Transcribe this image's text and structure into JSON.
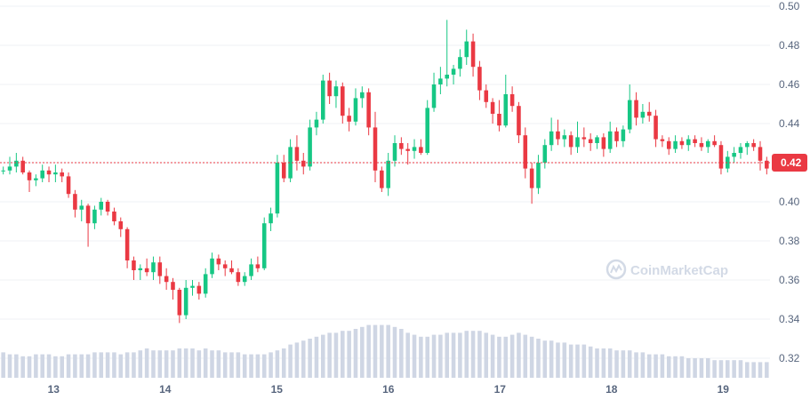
{
  "chart_data": {
    "type": "candlestick",
    "title": "",
    "xlabel": "",
    "ylabel": "",
    "ylim": [
      0.31,
      0.5
    ],
    "y_ticks": [
      "0.32",
      "0.34",
      "0.36",
      "0.38",
      "0.40",
      "0.42",
      "0.44",
      "0.46",
      "0.48",
      "0.50"
    ],
    "x_ticks": [
      "13",
      "14",
      "15",
      "16",
      "17",
      "18",
      "19"
    ],
    "x_tick_days": [
      13,
      14,
      15,
      16,
      17,
      18,
      19
    ],
    "x_range_days": [
      12.52,
      19.42
    ],
    "current_price": 0.42,
    "current_price_label": "0.42",
    "grid": true,
    "watermark": "CoinMarketCap",
    "colors": {
      "up": "#16c784",
      "down": "#ea3943",
      "volume": "#cfd6e4",
      "grid": "#eff2f5",
      "axis_text": "#58667e",
      "price_line": "#ea3943"
    },
    "candles": [
      [
        0.416,
        0.418,
        0.414,
        0.416
      ],
      [
        0.416,
        0.423,
        0.414,
        0.418
      ],
      [
        0.418,
        0.425,
        0.415,
        0.421
      ],
      [
        0.421,
        0.423,
        0.414,
        0.415
      ],
      [
        0.415,
        0.416,
        0.405,
        0.411
      ],
      [
        0.411,
        0.414,
        0.408,
        0.412
      ],
      [
        0.412,
        0.419,
        0.41,
        0.416
      ],
      [
        0.416,
        0.418,
        0.41,
        0.414
      ],
      [
        0.414,
        0.419,
        0.41,
        0.415
      ],
      [
        0.415,
        0.417,
        0.41,
        0.413
      ],
      [
        0.413,
        0.415,
        0.402,
        0.404
      ],
      [
        0.404,
        0.406,
        0.392,
        0.396
      ],
      [
        0.396,
        0.401,
        0.39,
        0.398
      ],
      [
        0.398,
        0.399,
        0.377,
        0.389
      ],
      [
        0.389,
        0.398,
        0.386,
        0.396
      ],
      [
        0.396,
        0.402,
        0.393,
        0.4
      ],
      [
        0.4,
        0.401,
        0.393,
        0.395
      ],
      [
        0.395,
        0.397,
        0.388,
        0.39
      ],
      [
        0.39,
        0.392,
        0.382,
        0.386
      ],
      [
        0.386,
        0.387,
        0.366,
        0.37
      ],
      [
        0.37,
        0.372,
        0.36,
        0.365
      ],
      [
        0.365,
        0.368,
        0.36,
        0.366
      ],
      [
        0.366,
        0.371,
        0.362,
        0.364
      ],
      [
        0.364,
        0.372,
        0.36,
        0.369
      ],
      [
        0.369,
        0.372,
        0.358,
        0.362
      ],
      [
        0.362,
        0.366,
        0.355,
        0.359
      ],
      [
        0.359,
        0.361,
        0.35,
        0.355
      ],
      [
        0.355,
        0.356,
        0.338,
        0.342
      ],
      [
        0.342,
        0.36,
        0.34,
        0.356
      ],
      [
        0.356,
        0.36,
        0.352,
        0.357
      ],
      [
        0.357,
        0.359,
        0.35,
        0.353
      ],
      [
        0.353,
        0.366,
        0.351,
        0.363
      ],
      [
        0.363,
        0.374,
        0.361,
        0.371
      ],
      [
        0.371,
        0.373,
        0.365,
        0.368
      ],
      [
        0.368,
        0.37,
        0.362,
        0.366
      ],
      [
        0.366,
        0.37,
        0.363,
        0.364
      ],
      [
        0.364,
        0.366,
        0.357,
        0.359
      ],
      [
        0.359,
        0.364,
        0.357,
        0.362
      ],
      [
        0.362,
        0.371,
        0.36,
        0.368
      ],
      [
        0.368,
        0.372,
        0.364,
        0.366
      ],
      [
        0.366,
        0.392,
        0.365,
        0.389
      ],
      [
        0.389,
        0.397,
        0.385,
        0.394
      ],
      [
        0.394,
        0.424,
        0.392,
        0.42
      ],
      [
        0.42,
        0.424,
        0.41,
        0.412
      ],
      [
        0.412,
        0.432,
        0.41,
        0.428
      ],
      [
        0.428,
        0.434,
        0.416,
        0.421
      ],
      [
        0.421,
        0.425,
        0.414,
        0.418
      ],
      [
        0.418,
        0.442,
        0.416,
        0.438
      ],
      [
        0.438,
        0.446,
        0.434,
        0.442
      ],
      [
        0.442,
        0.465,
        0.44,
        0.462
      ],
      [
        0.462,
        0.466,
        0.45,
        0.454
      ],
      [
        0.454,
        0.462,
        0.448,
        0.459
      ],
      [
        0.459,
        0.461,
        0.44,
        0.444
      ],
      [
        0.444,
        0.448,
        0.436,
        0.441
      ],
      [
        0.441,
        0.458,
        0.439,
        0.453
      ],
      [
        0.453,
        0.459,
        0.448,
        0.456
      ],
      [
        0.456,
        0.458,
        0.434,
        0.438
      ],
      [
        0.438,
        0.446,
        0.41,
        0.416
      ],
      [
        0.416,
        0.418,
        0.405,
        0.407
      ],
      [
        0.407,
        0.425,
        0.403,
        0.421
      ],
      [
        0.421,
        0.434,
        0.418,
        0.43
      ],
      [
        0.43,
        0.433,
        0.424,
        0.427
      ],
      [
        0.427,
        0.43,
        0.419,
        0.426
      ],
      [
        0.426,
        0.432,
        0.422,
        0.428
      ],
      [
        0.428,
        0.432,
        0.424,
        0.425
      ],
      [
        0.425,
        0.452,
        0.424,
        0.448
      ],
      [
        0.448,
        0.466,
        0.446,
        0.46
      ],
      [
        0.46,
        0.469,
        0.455,
        0.463
      ],
      [
        0.463,
        0.493,
        0.459,
        0.465
      ],
      [
        0.465,
        0.47,
        0.46,
        0.468
      ],
      [
        0.468,
        0.478,
        0.464,
        0.474
      ],
      [
        0.474,
        0.488,
        0.47,
        0.482
      ],
      [
        0.482,
        0.486,
        0.464,
        0.469
      ],
      [
        0.469,
        0.472,
        0.452,
        0.457
      ],
      [
        0.457,
        0.46,
        0.448,
        0.451
      ],
      [
        0.451,
        0.453,
        0.44,
        0.445
      ],
      [
        0.445,
        0.452,
        0.436,
        0.439
      ],
      [
        0.439,
        0.465,
        0.438,
        0.455
      ],
      [
        0.455,
        0.459,
        0.446,
        0.449
      ],
      [
        0.449,
        0.451,
        0.43,
        0.434
      ],
      [
        0.434,
        0.438,
        0.412,
        0.417
      ],
      [
        0.417,
        0.42,
        0.399,
        0.407
      ],
      [
        0.407,
        0.424,
        0.404,
        0.42
      ],
      [
        0.42,
        0.432,
        0.417,
        0.429
      ],
      [
        0.429,
        0.443,
        0.426,
        0.436
      ],
      [
        0.436,
        0.442,
        0.429,
        0.432
      ],
      [
        0.432,
        0.437,
        0.428,
        0.434
      ],
      [
        0.434,
        0.436,
        0.424,
        0.428
      ],
      [
        0.428,
        0.441,
        0.425,
        0.433
      ],
      [
        0.433,
        0.438,
        0.428,
        0.432
      ],
      [
        0.432,
        0.435,
        0.426,
        0.43
      ],
      [
        0.43,
        0.434,
        0.427,
        0.433
      ],
      [
        0.433,
        0.435,
        0.423,
        0.427
      ],
      [
        0.427,
        0.441,
        0.425,
        0.436
      ],
      [
        0.436,
        0.438,
        0.428,
        0.431
      ],
      [
        0.431,
        0.439,
        0.428,
        0.437
      ],
      [
        0.437,
        0.46,
        0.435,
        0.452
      ],
      [
        0.452,
        0.456,
        0.439,
        0.443
      ],
      [
        0.443,
        0.45,
        0.44,
        0.446
      ],
      [
        0.446,
        0.451,
        0.441,
        0.444
      ],
      [
        0.444,
        0.447,
        0.428,
        0.432
      ],
      [
        0.432,
        0.434,
        0.428,
        0.431
      ],
      [
        0.431,
        0.433,
        0.424,
        0.427
      ],
      [
        0.427,
        0.434,
        0.425,
        0.431
      ],
      [
        0.431,
        0.433,
        0.427,
        0.429
      ],
      [
        0.429,
        0.434,
        0.426,
        0.432
      ],
      [
        0.432,
        0.434,
        0.428,
        0.43
      ],
      [
        0.43,
        0.433,
        0.426,
        0.428
      ],
      [
        0.428,
        0.432,
        0.425,
        0.431
      ],
      [
        0.431,
        0.434,
        0.428,
        0.429
      ],
      [
        0.429,
        0.431,
        0.414,
        0.417
      ],
      [
        0.417,
        0.426,
        0.415,
        0.423
      ],
      [
        0.423,
        0.428,
        0.42,
        0.425
      ],
      [
        0.425,
        0.43,
        0.422,
        0.428
      ],
      [
        0.428,
        0.431,
        0.424,
        0.43
      ],
      [
        0.43,
        0.432,
        0.426,
        0.428
      ],
      [
        0.428,
        0.431,
        0.416,
        0.421
      ],
      [
        0.421,
        0.423,
        0.414,
        0.417
      ]
    ],
    "volume": [
      0.323,
      0.322,
      0.322,
      0.321,
      0.321,
      0.322,
      0.322,
      0.322,
      0.321,
      0.321,
      0.322,
      0.322,
      0.322,
      0.322,
      0.323,
      0.323,
      0.323,
      0.323,
      0.322,
      0.323,
      0.323,
      0.324,
      0.325,
      0.324,
      0.324,
      0.324,
      0.324,
      0.325,
      0.325,
      0.325,
      0.324,
      0.325,
      0.324,
      0.324,
      0.323,
      0.323,
      0.323,
      0.322,
      0.322,
      0.322,
      0.322,
      0.323,
      0.324,
      0.325,
      0.327,
      0.328,
      0.329,
      0.33,
      0.331,
      0.332,
      0.333,
      0.333,
      0.334,
      0.334,
      0.335,
      0.336,
      0.337,
      0.337,
      0.337,
      0.337,
      0.336,
      0.335,
      0.333,
      0.332,
      0.331,
      0.331,
      0.332,
      0.332,
      0.333,
      0.333,
      0.333,
      0.334,
      0.334,
      0.334,
      0.333,
      0.332,
      0.331,
      0.331,
      0.332,
      0.333,
      0.332,
      0.331,
      0.33,
      0.329,
      0.329,
      0.328,
      0.328,
      0.327,
      0.327,
      0.327,
      0.326,
      0.325,
      0.325,
      0.325,
      0.324,
      0.324,
      0.324,
      0.323,
      0.323,
      0.322,
      0.322,
      0.322,
      0.321,
      0.321,
      0.321,
      0.32,
      0.32,
      0.32,
      0.32,
      0.319,
      0.319,
      0.319,
      0.319,
      0.319,
      0.318,
      0.318,
      0.318,
      0.318
    ]
  }
}
